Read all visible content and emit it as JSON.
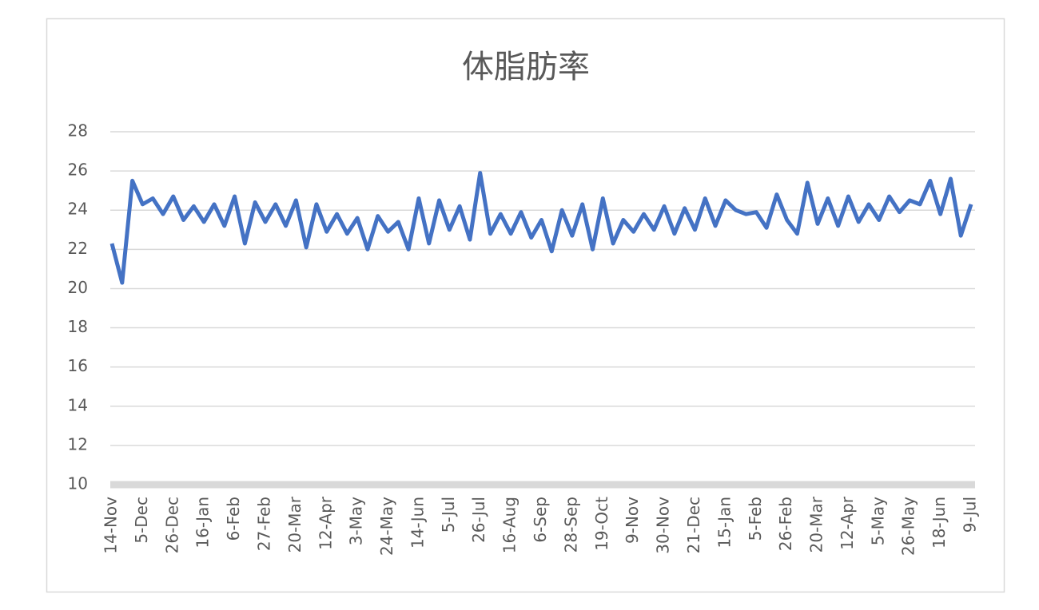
{
  "chart_data": {
    "type": "line",
    "title": "体脂肪率",
    "categories": [
      "14-Nov",
      null,
      null,
      "5-Dec",
      null,
      null,
      "26-Dec",
      null,
      null,
      "16-Jan",
      null,
      null,
      "6-Feb",
      null,
      null,
      "27-Feb",
      null,
      null,
      "20-Mar",
      null,
      null,
      "12-Apr",
      null,
      null,
      "3-May",
      null,
      null,
      "24-May",
      null,
      null,
      "14-Jun",
      null,
      null,
      "5-Jul",
      null,
      null,
      "26-Jul",
      null,
      null,
      "16-Aug",
      null,
      null,
      "6-Sep",
      null,
      null,
      "28-Sep",
      null,
      null,
      "19-Oct",
      null,
      null,
      "9-Nov",
      null,
      null,
      "30-Nov",
      null,
      null,
      "21-Dec",
      null,
      null,
      "15-Jan",
      null,
      null,
      "5-Feb",
      null,
      null,
      "26-Feb",
      null,
      null,
      "20-Mar",
      null,
      null,
      "12-Apr",
      null,
      null,
      "5-May",
      null,
      null,
      "26-May",
      null,
      null,
      "18-Jun",
      null,
      null,
      "9-Jul"
    ],
    "values": [
      22.3,
      20.3,
      25.5,
      24.3,
      24.6,
      23.8,
      24.7,
      23.5,
      24.2,
      23.4,
      24.3,
      23.2,
      24.7,
      22.3,
      24.4,
      23.4,
      24.3,
      23.2,
      24.5,
      22.1,
      24.3,
      22.9,
      23.8,
      22.8,
      23.6,
      22.0,
      23.7,
      22.9,
      23.4,
      22.0,
      24.6,
      22.3,
      24.5,
      23.0,
      24.2,
      22.5,
      25.9,
      22.8,
      23.8,
      22.8,
      23.9,
      22.6,
      23.5,
      21.9,
      24.0,
      22.7,
      24.3,
      22.0,
      24.6,
      22.3,
      23.5,
      22.9,
      23.8,
      23.0,
      24.2,
      22.8,
      24.1,
      23.0,
      24.6,
      23.2,
      24.5,
      24.0,
      23.8,
      23.9,
      23.1,
      24.8,
      23.5,
      22.8,
      25.4,
      23.3,
      24.6,
      23.2,
      24.7,
      23.4,
      24.3,
      23.5,
      24.7,
      23.9,
      24.5,
      24.3,
      25.5,
      23.8,
      25.6,
      22.7,
      24.3
    ],
    "color": "#4472c4",
    "ylim": [
      10,
      28
    ],
    "yticks": [
      10,
      12,
      14,
      16,
      18,
      20,
      22,
      24,
      26,
      28
    ],
    "grid": true
  }
}
